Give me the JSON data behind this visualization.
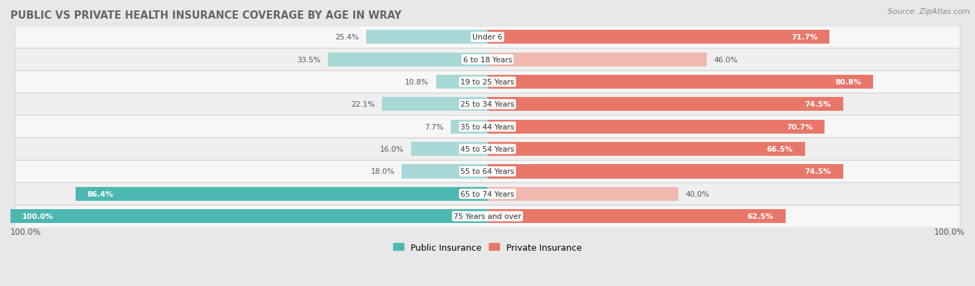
{
  "title": "PUBLIC VS PRIVATE HEALTH INSURANCE COVERAGE BY AGE IN WRAY",
  "source": "Source: ZipAtlas.com",
  "categories": [
    "Under 6",
    "6 to 18 Years",
    "19 to 25 Years",
    "25 to 34 Years",
    "35 to 44 Years",
    "45 to 54 Years",
    "55 to 64 Years",
    "65 to 74 Years",
    "75 Years and over"
  ],
  "public_values": [
    25.4,
    33.5,
    10.8,
    22.1,
    7.7,
    16.0,
    18.0,
    86.4,
    100.0
  ],
  "private_values": [
    71.7,
    46.0,
    80.8,
    74.5,
    70.7,
    66.5,
    74.5,
    40.0,
    62.5
  ],
  "public_color_strong": "#4db8b2",
  "public_color_light": "#a8d8d6",
  "private_color_strong": "#e8776a",
  "private_color_light": "#f0b8ae",
  "bg_color": "#e8e8e8",
  "row_color_odd": "#f7f7f7",
  "row_color_even": "#efefef",
  "title_color": "#666666",
  "label_dark": "#555555",
  "axis_max": 100.0,
  "strong_threshold": 50.0
}
